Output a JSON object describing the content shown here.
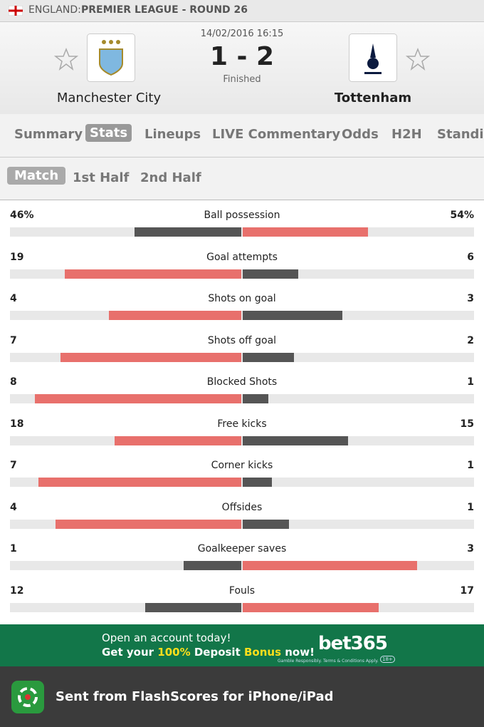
{
  "header": {
    "country": "ENGLAND:",
    "competition": "PREMIER LEAGUE - ROUND 26"
  },
  "match": {
    "datetime": "14/02/2016 16:15",
    "score": "1 - 2",
    "status": "Finished",
    "home": "Manchester City",
    "away": "Tottenham"
  },
  "tabs": [
    "Summary",
    "Stats",
    "Lineups",
    "LIVE Commentary",
    "Odds",
    "H2H",
    "Standings"
  ],
  "subtabs": [
    "Match",
    "1st Half",
    "2nd Half"
  ],
  "stats": [
    {
      "name": "Ball possession",
      "values": [
        46,
        54
      ],
      "value_labels": [
        "46%",
        "54%"
      ]
    },
    {
      "name": "Goal attempts",
      "values": [
        19,
        6
      ]
    },
    {
      "name": "Shots on goal",
      "values": [
        4,
        3
      ]
    },
    {
      "name": "Shots off goal",
      "values": [
        7,
        2
      ]
    },
    {
      "name": "Blocked Shots",
      "values": [
        8,
        1
      ]
    },
    {
      "name": "Free kicks",
      "values": [
        18,
        15
      ]
    },
    {
      "name": "Corner kicks",
      "values": [
        7,
        1
      ]
    },
    {
      "name": "Offsides",
      "values": [
        4,
        1
      ]
    },
    {
      "name": "Goalkeeper saves",
      "values": [
        1,
        3
      ]
    },
    {
      "name": "Fouls",
      "values": [
        12,
        17
      ]
    }
  ],
  "ad": {
    "line1": "Open an account today!",
    "line2a": "Get your ",
    "line2b": "100%",
    "line2c": " Deposit ",
    "line2d": "Bonus",
    "line2e": " now!",
    "brand": "bet365",
    "fine": "Gamble Responsibly. Terms & Conditions Apply.",
    "age": "18+"
  },
  "footer": {
    "text": "Sent from FlashScores for iPhone/iPad"
  }
}
